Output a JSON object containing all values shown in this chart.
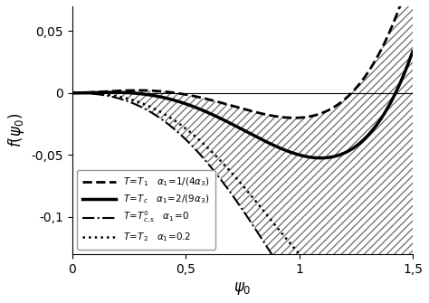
{
  "xlabel": "$\\psi_0$",
  "ylabel": "$f(\\psi_0)$",
  "xlim": [
    0,
    1.5
  ],
  "ylim": [
    -0.13,
    0.07
  ],
  "yticks": [
    -0.1,
    -0.05,
    0,
    0.05
  ],
  "ytick_labels": [
    "-0,1",
    "-0,05",
    "0",
    "0,05"
  ],
  "xticks": [
    0,
    0.5,
    1.0,
    1.5
  ],
  "xtick_labels": [
    "0",
    "0,5",
    "1",
    "1,5"
  ],
  "curves": {
    "T1": {
      "A": 0.09,
      "B": -0.27,
      "C": 0.16,
      "ls": "--",
      "lw": 2.0
    },
    "Tc": {
      "A": 0.06,
      "B": -0.27,
      "C": 0.16,
      "ls": "-",
      "lw": 2.5
    },
    "T0cs": {
      "A": -0.055,
      "B": -0.27,
      "C": 0.16,
      "ls": "-.",
      "lw": 1.5
    },
    "T2": {
      "A": -0.02,
      "B": -0.27,
      "C": 0.16,
      "ls": ":",
      "lw": 1.5
    }
  },
  "legend_entries": [
    [
      "--",
      2.0,
      "T=T_1",
      "\\alpha_1=1/(4\\alpha_3)"
    ],
    [
      "-",
      2.5,
      "T=T_c",
      "\\alpha_1=2/(9\\alpha_3)"
    ],
    [
      "-.",
      1.5,
      "T=T^0_{c,s}",
      "\\alpha_1=0"
    ],
    [
      ":",
      1.5,
      "T=T_2",
      "\\alpha_1=0.2"
    ]
  ]
}
